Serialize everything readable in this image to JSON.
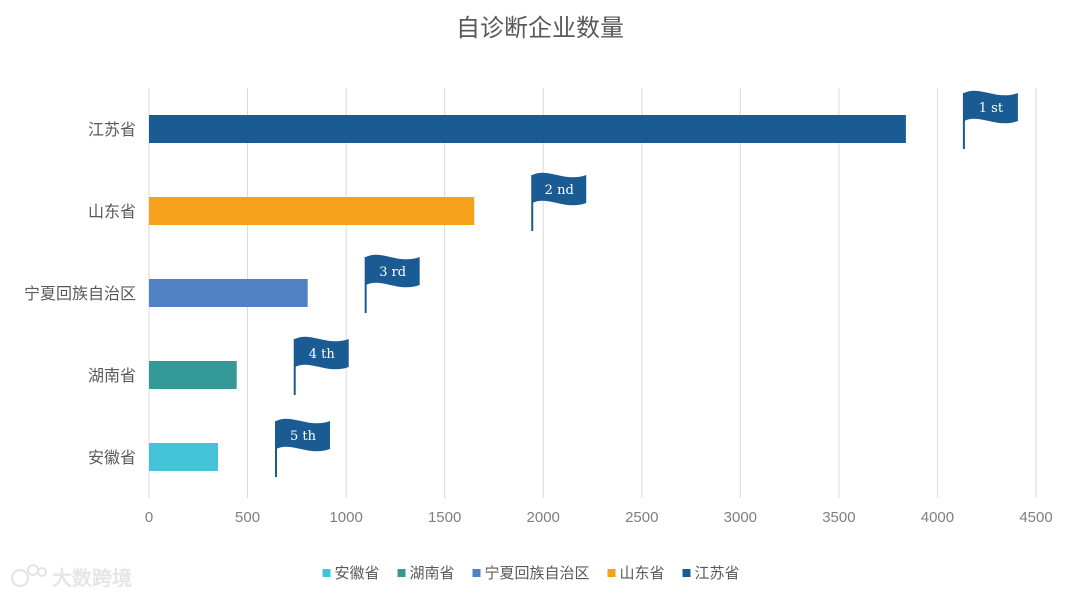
{
  "chart_data": {
    "type": "bar",
    "orientation": "horizontal",
    "title": "自诊断企业数量",
    "categories": [
      "江苏省",
      "山东省",
      "宁夏回族自治区",
      "湖南省",
      "安徽省"
    ],
    "values": [
      3840,
      1650,
      805,
      445,
      350
    ],
    "colors": [
      "#1b5b94",
      "#f5a11c",
      "#4f81c3",
      "#35999a",
      "#44c3d8"
    ],
    "ranks": [
      "1 st",
      "2 nd",
      "3 rd",
      "4 th",
      "5 th"
    ],
    "xlim": [
      0,
      4500
    ],
    "xticks": [
      0,
      500,
      1000,
      1500,
      2000,
      2500,
      3000,
      3500,
      4000,
      4500
    ],
    "grid": true,
    "legend_position": "bottom",
    "legend": [
      "安徽省",
      "湖南省",
      "宁夏回族自治区",
      "山东省",
      "江苏省"
    ],
    "legend_colors": [
      "#44c3d8",
      "#35999a",
      "#4f81c3",
      "#f5a11c",
      "#1b5b94"
    ],
    "flag_color": "#1b5b94"
  },
  "watermark": {
    "text": "大数跨境"
  }
}
